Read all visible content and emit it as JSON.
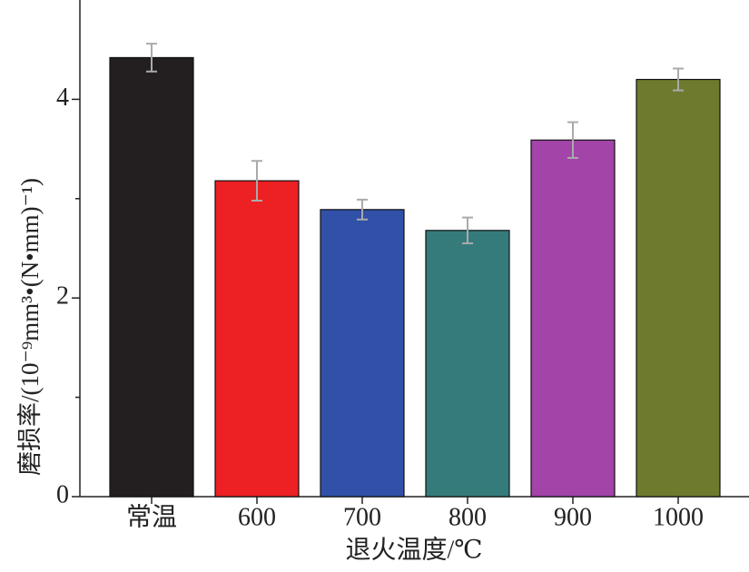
{
  "chart_data": {
    "type": "bar",
    "y_label": "磨损率/(10⁻⁹mm³•(N•mm)⁻¹)",
    "x_label": "退火温度/℃",
    "categories": [
      "常温",
      "600",
      "700",
      "800",
      "900",
      "1000"
    ],
    "values": [
      4.42,
      3.18,
      2.89,
      2.68,
      3.59,
      4.2
    ],
    "errors": [
      0.14,
      0.2,
      0.1,
      0.13,
      0.18,
      0.11
    ],
    "colors": [
      "#231f20",
      "#ed2024",
      "#3150a8",
      "#367b7b",
      "#a244a8",
      "#6e7a2e"
    ],
    "error_color": "#aaaaaa",
    "ylim": [
      0,
      5
    ],
    "yticks": [
      0,
      2,
      4
    ],
    "minor_yticks": [
      1,
      3
    ],
    "grid": false
  }
}
